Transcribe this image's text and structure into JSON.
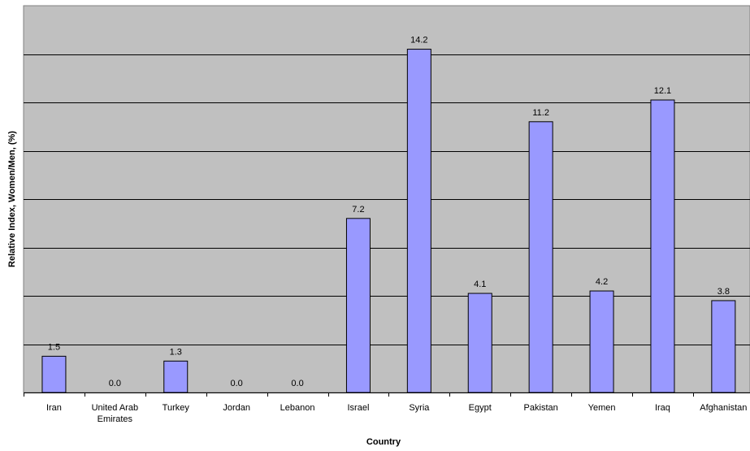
{
  "chart_data": {
    "type": "bar",
    "title": "",
    "xlabel": "Country",
    "ylabel": "Relative Index, Women/Men, (%)",
    "categories": [
      "Iran",
      "United Arab Emirates",
      "Turkey",
      "Jordan",
      "Lebanon",
      "Israel",
      "Syria",
      "Egypt",
      "Pakistan",
      "Yemen",
      "Iraq",
      "Afghanistan"
    ],
    "category_lines": [
      [
        "Iran"
      ],
      [
        "United Arab",
        "Emirates"
      ],
      [
        "Turkey"
      ],
      [
        "Jordan"
      ],
      [
        "Lebanon"
      ],
      [
        "Israel"
      ],
      [
        "Syria"
      ],
      [
        "Egypt"
      ],
      [
        "Pakistan"
      ],
      [
        "Yemen"
      ],
      [
        "Iraq"
      ],
      [
        "Afghanistan"
      ]
    ],
    "values": [
      1.5,
      0.0,
      1.3,
      0.0,
      0.0,
      7.2,
      14.2,
      4.1,
      11.2,
      4.2,
      12.1,
      3.8
    ],
    "value_labels": [
      "1.5",
      "0.0",
      "1.3",
      "0.0",
      "0.0",
      "7.2",
      "14.2",
      "4.1",
      "11.2",
      "4.2",
      "12.1",
      "3.8"
    ],
    "ylim": [
      0,
      16
    ],
    "grid": true,
    "legend": "none",
    "colors": {
      "plot_background": "#c0c0c0",
      "bar_fill": "#9999ff",
      "bar_stroke": "#000000",
      "gridline": "#000000"
    }
  }
}
